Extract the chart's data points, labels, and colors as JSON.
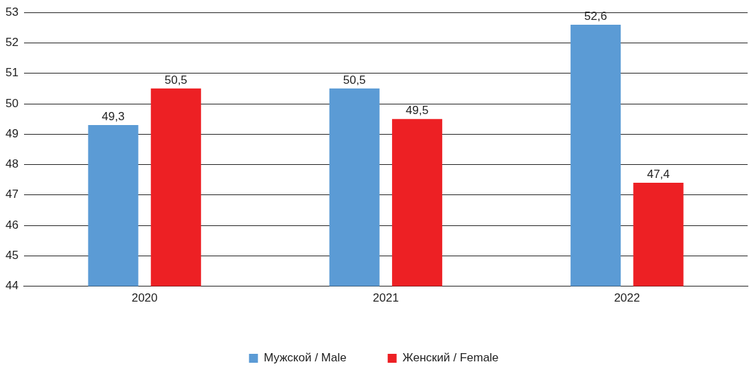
{
  "chart_data": {
    "type": "bar",
    "categories": [
      "2020",
      "2021",
      "2022"
    ],
    "series": [
      {
        "name": "Мужской / Male",
        "color": "#5b9bd5",
        "values": [
          49.3,
          50.5,
          52.6
        ],
        "value_labels": [
          "49,3",
          "50,5",
          "52,6"
        ]
      },
      {
        "name": "Женский / Female",
        "color": "#ed2024",
        "values": [
          50.5,
          49.5,
          47.4
        ],
        "value_labels": [
          "50,5",
          "49,5",
          "47,4"
        ]
      }
    ],
    "ylim": [
      44,
      53
    ],
    "yticks": [
      44,
      45,
      46,
      47,
      48,
      49,
      50,
      51,
      52,
      53
    ],
    "grid": "y",
    "legend": "bottom"
  }
}
